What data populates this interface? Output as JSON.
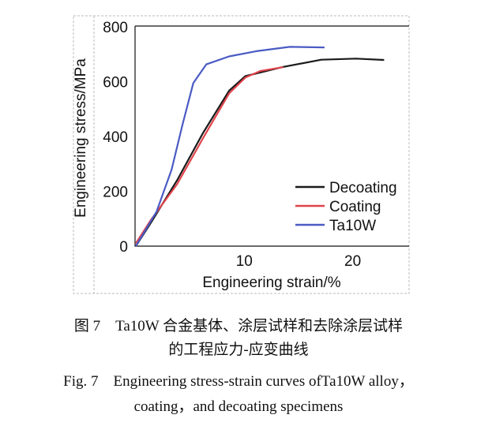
{
  "chart_data": {
    "type": "line",
    "xlabel": "Engineering strain/%",
    "ylabel": "Engineering stress/MPa",
    "xlim": [
      0,
      25.2
    ],
    "ylim": [
      0,
      800
    ],
    "xticks": [
      10,
      20
    ],
    "yticks": [
      0,
      200,
      400,
      600,
      800
    ],
    "grid": false,
    "legend": "bottom-right",
    "series": [
      {
        "name": "Decoating",
        "color": "#1a1a1a",
        "x": [
          0,
          1.4,
          3.8,
          6.2,
          8.6,
          10.1,
          13.5,
          17.1,
          20.3,
          22.9
        ],
        "y": [
          0,
          86,
          240,
          413,
          567,
          620,
          653,
          680,
          684,
          679
        ]
      },
      {
        "name": "Coating",
        "color": "#e0434b",
        "x": [
          0,
          1.4,
          3.8,
          6.2,
          8.6,
          10.1,
          11.5,
          13.6
        ],
        "y": [
          10,
          96,
          226,
          394,
          557,
          615,
          639,
          653
        ]
      },
      {
        "name": "Ta10W",
        "color": "#4a5bc4",
        "x": [
          0,
          1.9,
          3.3,
          4.3,
          5.3,
          6.5,
          8.6,
          11.1,
          14.2,
          17.4
        ],
        "y": [
          0,
          125,
          279,
          442,
          595,
          663,
          692,
          711,
          727,
          725
        ]
      }
    ]
  },
  "caption": {
    "cn_line1": "图 7　Ta10W 合金基体、涂层试样和去除涂层试样",
    "cn_line2": "的工程应力-应变曲线",
    "en_line1": "Fig. 7　Engineering stress-strain curves ofTa10W alloy，",
    "en_line2": "coating，and decoating specimens"
  }
}
